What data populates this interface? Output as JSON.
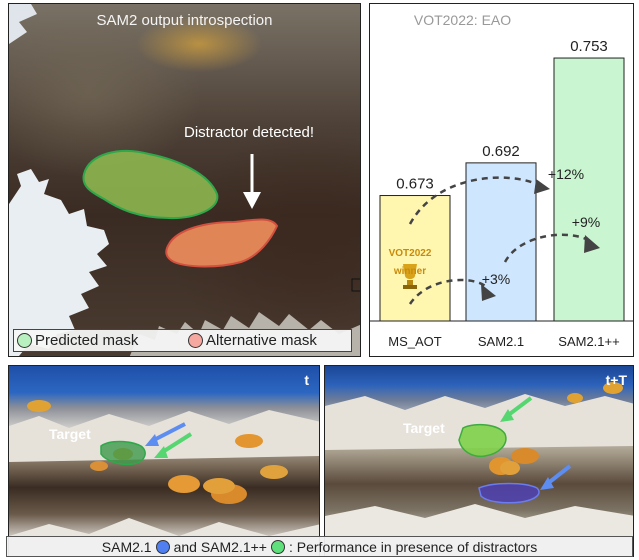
{
  "left_panel": {
    "title": "SAM2 output introspection",
    "annotation": "Distractor detected!",
    "legend": [
      {
        "label": "Predicted mask",
        "color": "#3ec956"
      },
      {
        "label": "Alternative mask",
        "color": "#e66a5c"
      }
    ]
  },
  "bottom_panels": {
    "left_label": "t",
    "right_label": "t+T",
    "target_label_left": "Target",
    "target_label_right": "Target"
  },
  "caption": {
    "part1": "SAM2.1",
    "part2": "and SAM2.1++",
    "part3": ": Performance in presence of distractors",
    "sam21_color": "#4f7ff0",
    "sam21pp_color": "#5fe07c"
  },
  "chart_data": {
    "type": "bar",
    "title": "VOT2022: EAO",
    "categories": [
      "MS_AOT",
      "SAM2.1",
      "SAM2.1++"
    ],
    "values": [
      0.673,
      0.692,
      0.753
    ],
    "value_labels": [
      "0.673",
      "0.692",
      "0.753"
    ],
    "colors": [
      "#fff6b0",
      "#cfe6ff",
      "#c9f5d0"
    ],
    "edge_color": "#222222",
    "ylim": [
      0.6,
      0.76
    ],
    "annotations": [
      "+3%",
      "+9%",
      "+12%"
    ],
    "badge": {
      "line1": "VOT2022",
      "line2": "winner"
    }
  }
}
